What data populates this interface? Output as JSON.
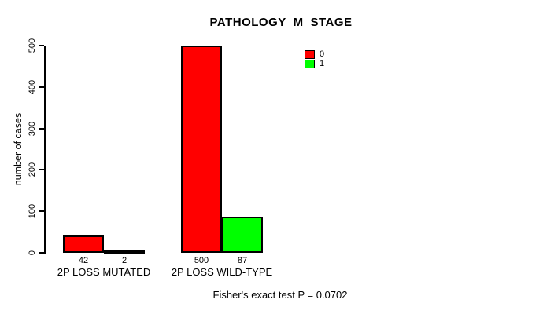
{
  "chart_data": {
    "type": "bar",
    "title": "PATHOLOGY_M_STAGE",
    "xlabel": "",
    "ylabel": "number of cases",
    "ylim": [
      0,
      500
    ],
    "yticks": [
      0,
      100,
      200,
      300,
      400,
      500
    ],
    "grid": false,
    "categories": [
      "2P LOSS MUTATED",
      "2P LOSS WILD-TYPE"
    ],
    "series": [
      {
        "name": "0",
        "color": "#ff0000",
        "values": [
          42,
          500
        ]
      },
      {
        "name": "1",
        "color": "#00ff00",
        "values": [
          2,
          87
        ]
      }
    ],
    "bar_value_labels": [
      [
        "42",
        "2"
      ],
      [
        "500",
        "87"
      ]
    ],
    "legend": {
      "position": "top-right",
      "entries": [
        {
          "label": "0",
          "color": "#ff0000"
        },
        {
          "label": "1",
          "color": "#00ff00"
        }
      ]
    },
    "annotation": "Fisher's exact test P = 0.0702",
    "axis_color": "#000000",
    "bar_border_color": "#000000"
  }
}
